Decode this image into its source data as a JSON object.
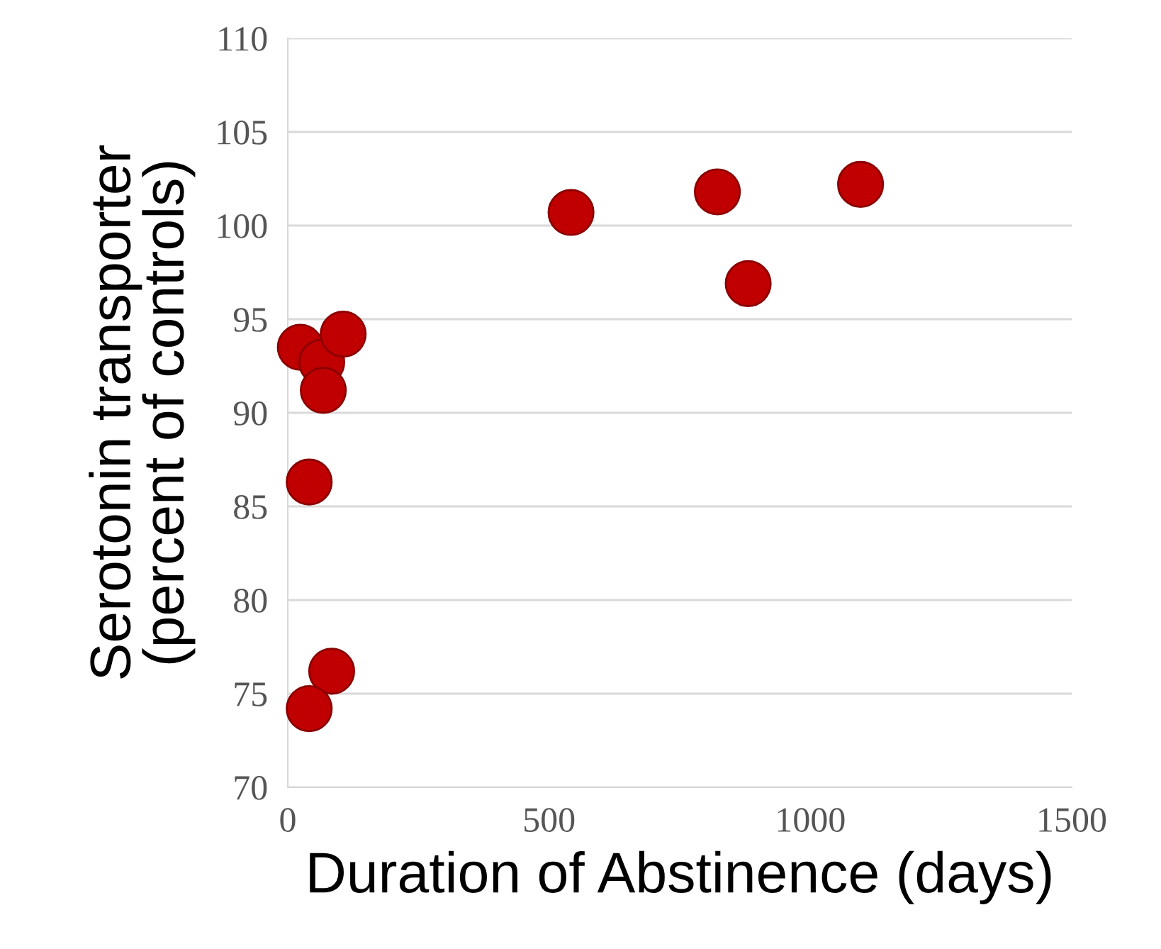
{
  "chart_data": {
    "type": "scatter",
    "xlabel": "Duration of Abstinence (days)",
    "ylabel": "Serotonin transporter\n(percent of controls)",
    "x": [
      24,
      65,
      68,
      106,
      41,
      84,
      41,
      542,
      822,
      881,
      1096
    ],
    "values": [
      93.5,
      92.7,
      91.2,
      94.2,
      86.3,
      76.2,
      74.2,
      100.7,
      101.8,
      96.9,
      102.2
    ],
    "color": "#c00000",
    "marker": "circle",
    "grid": "y",
    "xlim": [
      0,
      1500
    ],
    "xticks": [
      0,
      500,
      1000,
      1500
    ],
    "ylim": [
      70,
      110
    ],
    "yticks": [
      70,
      75,
      80,
      85,
      90,
      95,
      100,
      105,
      110
    ]
  }
}
